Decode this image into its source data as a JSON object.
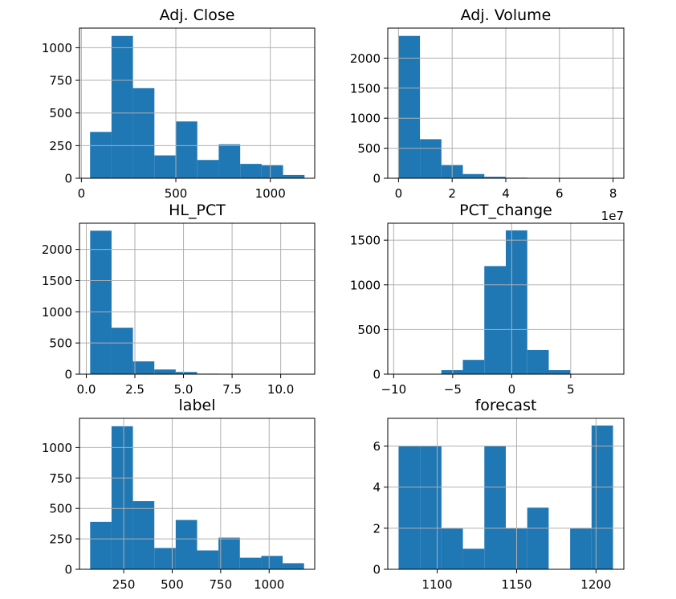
{
  "chart_data": [
    {
      "type": "bar",
      "title": "Adj. Close",
      "bin_edges": [
        46,
        159.5,
        273,
        386.5,
        500,
        613.5,
        727,
        840.5,
        954,
        1067.5,
        1181
      ],
      "values": [
        355,
        1090,
        690,
        175,
        435,
        140,
        260,
        110,
        100,
        25
      ],
      "xlim": [
        -10,
        1235
      ],
      "ylim": [
        0,
        1150
      ],
      "xticks": [
        0,
        500,
        1000
      ],
      "xtick_labels": [
        "0",
        "500",
        "1000"
      ],
      "yticks": [
        0,
        250,
        500,
        750,
        1000
      ],
      "ytick_labels": [
        "0",
        "250",
        "500",
        "750",
        "1000"
      ],
      "grid": true
    },
    {
      "type": "bar",
      "title": "Adj. Volume",
      "bin_edges": [
        0,
        0.8,
        1.6,
        2.4,
        3.2,
        4.0,
        4.8,
        5.6,
        6.4,
        7.2,
        8.0
      ],
      "values": [
        2370,
        650,
        220,
        70,
        25,
        10,
        4,
        3,
        2,
        1
      ],
      "xlim": [
        -0.4,
        8.4
      ],
      "ylim": [
        0,
        2500
      ],
      "xticks": [
        0,
        2,
        4,
        6,
        8
      ],
      "xtick_labels": [
        "0",
        "2",
        "4",
        "6",
        "8"
      ],
      "yticks": [
        0,
        500,
        1000,
        1500,
        2000
      ],
      "ytick_labels": [
        "0",
        "500",
        "1000",
        "1500",
        "2000"
      ],
      "x_offset_label": "1e7",
      "grid": true
    },
    {
      "type": "bar",
      "title": "HL_PCT",
      "bin_edges": [
        0.2,
        1.3,
        2.4,
        3.5,
        4.6,
        5.7,
        6.8,
        7.9,
        9.0,
        10.1,
        11.2
      ],
      "values": [
        2300,
        745,
        205,
        75,
        35,
        8,
        3,
        2,
        1,
        1
      ],
      "xlim": [
        -0.35,
        11.75
      ],
      "ylim": [
        0,
        2420
      ],
      "xticks": [
        0,
        2.5,
        5,
        7.5,
        10
      ],
      "xtick_labels": [
        "0.0",
        "2.5",
        "5.0",
        "7.5",
        "10.0"
      ],
      "yticks": [
        0,
        500,
        1000,
        1500,
        2000
      ],
      "ytick_labels": [
        "0",
        "500",
        "1000",
        "1500",
        "2000"
      ],
      "grid": true
    },
    {
      "type": "bar",
      "title": "PCT_change",
      "bin_edges": [
        -9.6,
        -7.78,
        -5.96,
        -4.14,
        -2.32,
        -0.5,
        1.32,
        3.14,
        4.96,
        6.78,
        8.6
      ],
      "values": [
        2,
        4,
        45,
        160,
        1210,
        1610,
        270,
        45,
        4,
        2
      ],
      "xlim": [
        -10.5,
        9.5
      ],
      "ylim": [
        0,
        1690
      ],
      "xticks": [
        -10,
        -5,
        0,
        5
      ],
      "xtick_labels": [
        "−10",
        "−5",
        "0",
        "5"
      ],
      "yticks": [
        0,
        500,
        1000,
        1500
      ],
      "ytick_labels": [
        "0",
        "500",
        "1000",
        "1500"
      ],
      "grid": true
    },
    {
      "type": "bar",
      "title": "label",
      "bin_edges": [
        77,
        187.3,
        297.6,
        407.9,
        518.2,
        628.5,
        738.8,
        849.1,
        959.4,
        1069.7,
        1180
      ],
      "values": [
        390,
        1175,
        560,
        175,
        405,
        155,
        260,
        95,
        110,
        50
      ],
      "xlim": [
        22,
        1235
      ],
      "ylim": [
        0,
        1240
      ],
      "xticks": [
        250,
        500,
        750,
        1000
      ],
      "xtick_labels": [
        "250",
        "500",
        "750",
        "1000"
      ],
      "yticks": [
        0,
        250,
        500,
        750,
        1000
      ],
      "ytick_labels": [
        "0",
        "250",
        "500",
        "750",
        "1000"
      ],
      "grid": true
    },
    {
      "type": "bar",
      "title": "forecast",
      "bin_edges": [
        1075.7,
        1089.2,
        1102.7,
        1116.2,
        1129.7,
        1143.2,
        1156.7,
        1170.2,
        1183.7,
        1197.2,
        1210.7
      ],
      "values": [
        6,
        6,
        2,
        1,
        6,
        2,
        3,
        0,
        2,
        7
      ],
      "xlim": [
        1068.9,
        1217.5
      ],
      "ylim": [
        0,
        7.35
      ],
      "xticks": [
        1100,
        1150,
        1200
      ],
      "xtick_labels": [
        "1100",
        "1150",
        "1200"
      ],
      "yticks": [
        0,
        2,
        4,
        6
      ],
      "ytick_labels": [
        "0",
        "2",
        "4",
        "6"
      ],
      "grid": true
    }
  ]
}
